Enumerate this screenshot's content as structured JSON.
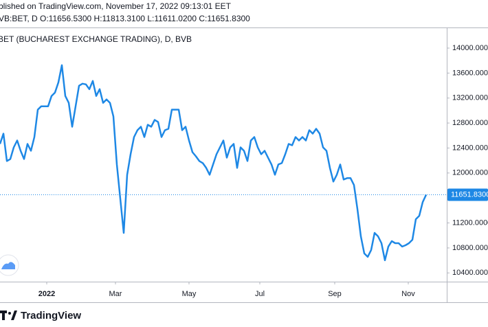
{
  "header_line": "blished on TradingView.com, November 17, 2022 09:13:01 EET",
  "symbol_line": "VB:BET, D  O:11656.5300 H:11813.3100 L:11611.0200 C:11651.8300",
  "footer_brand": "TradingView",
  "chart_data": {
    "type": "line",
    "title": "BET (BUCHAREST EXCHANGE TRADING), D, BVB",
    "color": "#1e88e5",
    "values": [
      12466,
      12630,
      12192,
      12224,
      12411,
      12520,
      12356,
      12224,
      12466,
      12356,
      12575,
      13014,
      13068,
      13068,
      13068,
      13233,
      13288,
      13452,
      13726,
      13233,
      13123,
      12740,
      13068,
      13397,
      13430,
      13419,
      13342,
      13474,
      13233,
      13342,
      13123,
      13178,
      13123,
      12904,
      12137,
      11589,
      11041,
      11972,
      12301,
      12575,
      12685,
      12740,
      12575,
      12772,
      12740,
      12849,
      12816,
      12575,
      12685,
      12707,
      13014,
      13014,
      13014,
      12685,
      12740,
      12520,
      12334,
      12268,
      12192,
      12159,
      12082,
      11972,
      12137,
      12301,
      12411,
      12520,
      12246,
      12411,
      12466,
      12082,
      12411,
      12356,
      12192,
      12520,
      12575,
      12411,
      12301,
      12356,
      12246,
      12137,
      11972,
      12137,
      12159,
      12301,
      12466,
      12444,
      12575,
      12520,
      12575,
      12520,
      12685,
      12630,
      12707,
      12630,
      12411,
      12356,
      12082,
      11863,
      11972,
      12137,
      11896,
      11918,
      11918,
      11808,
      11424,
      10986,
      10712,
      10657,
      10767,
      11041,
      10986,
      10876,
      10602,
      10822,
      10909,
      10876,
      10876,
      10822,
      10843,
      10876,
      10931,
      11260,
      11315,
      11534,
      11652
    ],
    "ylim": [
      10260,
      14330
    ],
    "yticks": [
      {
        "value": 10400,
        "label": "10400.0000"
      },
      {
        "value": 10800,
        "label": "10800.0000"
      },
      {
        "value": 11200,
        "label": "11200.0000"
      },
      {
        "value": 12000,
        "label": "12000.0000"
      },
      {
        "value": 12400,
        "label": "12400.0000"
      },
      {
        "value": 12800,
        "label": "12800.0000"
      },
      {
        "value": 13200,
        "label": "13200.0000"
      },
      {
        "value": 13600,
        "label": "13600.0000"
      },
      {
        "value": 14000,
        "label": "14000.0000"
      }
    ],
    "xticks": [
      {
        "value": 13.6,
        "label": "2022"
      },
      {
        "value": 33.6,
        "label": "Mar"
      },
      {
        "value": 55,
        "label": "May"
      },
      {
        "value": 75.6,
        "label": "Jul"
      },
      {
        "value": 97.4,
        "label": "Sep"
      },
      {
        "value": 118.8,
        "label": "Nov"
      }
    ],
    "last_price": 11651.83,
    "last_price_label": "11651.8300"
  }
}
